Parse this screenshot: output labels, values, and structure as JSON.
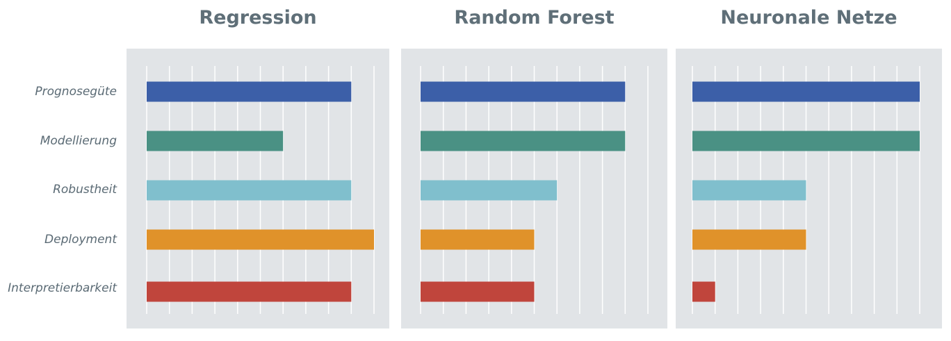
{
  "chart_data": {
    "type": "bar",
    "orientation": "horizontal",
    "categories": [
      "Prognosegüte",
      "Modellierung",
      "Robustheit",
      "Deployment",
      "Interpretierbarkeit"
    ],
    "colors": [
      "#3c5fa8",
      "#4a9184",
      "#80bfcd",
      "#e0922a",
      "#c0453c"
    ],
    "grid": "vertical",
    "xlim": [
      0,
      10
    ],
    "panels": [
      {
        "title": "Regression",
        "values": [
          9,
          6,
          9,
          10,
          9
        ]
      },
      {
        "title": "Random Forest",
        "values": [
          9,
          9,
          6,
          5,
          5
        ]
      },
      {
        "title": "Neuronale Netze",
        "values": [
          10,
          10,
          5,
          5,
          1
        ]
      }
    ]
  }
}
